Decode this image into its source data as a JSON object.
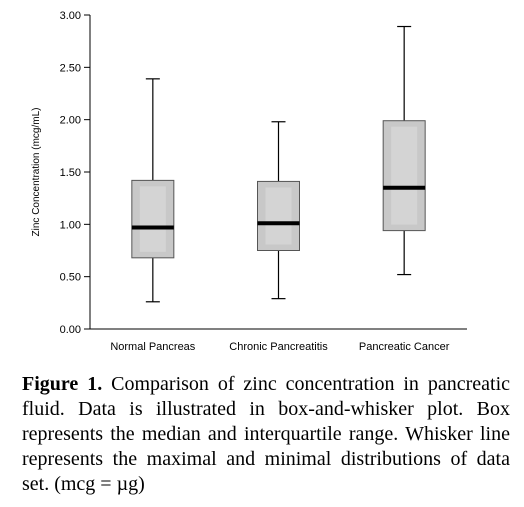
{
  "chart_data": {
    "type": "box",
    "ylabel": "Zinc Concentration (mcg/mL)",
    "xlabel": "",
    "ylim": [
      0,
      3
    ],
    "yticks": [
      "0.00",
      "0.50",
      "1.00",
      "1.50",
      "2.00",
      "2.50",
      "3.00"
    ],
    "categories": [
      "Normal Pancreas",
      "Chronic Pancreatitis",
      "Pancreatic Cancer"
    ],
    "boxes": [
      {
        "category": "Normal Pancreas",
        "min": 0.26,
        "q1": 0.68,
        "median": 0.97,
        "q3": 1.42,
        "max": 2.39
      },
      {
        "category": "Chronic Pancreatitis",
        "min": 0.29,
        "q1": 0.75,
        "median": 1.01,
        "q3": 1.41,
        "max": 1.98
      },
      {
        "category": "Pancreatic Cancer",
        "min": 0.52,
        "q1": 0.94,
        "median": 1.35,
        "q3": 1.99,
        "max": 2.89
      }
    ],
    "grid": false,
    "colors": {
      "box_fill": "#c8c8c8",
      "box_inner": "#d4d4d4",
      "median": "#000000",
      "whisker": "#000000"
    }
  },
  "caption": {
    "label": "Figure 1.",
    "text": " Comparison of zinc concentration in pancreatic fluid. Data is illustrated in box-and-whisker plot. Box represents the median and interquartile range. Whisker line represents the maximal and minimal distributions of data set. (mcg = µg)"
  }
}
